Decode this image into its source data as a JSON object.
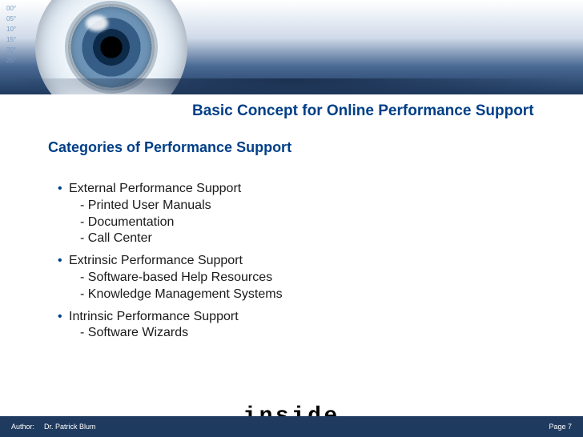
{
  "colors": {
    "title": "#003f87",
    "text": "#1a1a1a",
    "footer_bg": "#1f3a5f",
    "footer_text": "#ffffff"
  },
  "header": {
    "angle_marks": [
      "00°",
      "05°",
      "10°",
      "15°",
      "20°",
      "25°"
    ]
  },
  "title": "Basic Concept for Online Performance Support",
  "section_heading": "Categories of Performance Support",
  "items": [
    {
      "heading": "External Performance Support",
      "sub": [
        "- Printed User Manuals",
        "- Documentation",
        "- Call Center"
      ]
    },
    {
      "heading": "Extrinsic Performance Support",
      "sub": [
        "- Software-based Help Resources",
        "- Knowledge Management Systems"
      ]
    },
    {
      "heading": "Intrinsic Performance Support",
      "sub": [
        "- Software Wizards"
      ]
    }
  ],
  "footer": {
    "author_label": "Author:",
    "author_name": "Dr. Patrick Blum",
    "page_label": "Page 7",
    "logo_text": "inside"
  }
}
